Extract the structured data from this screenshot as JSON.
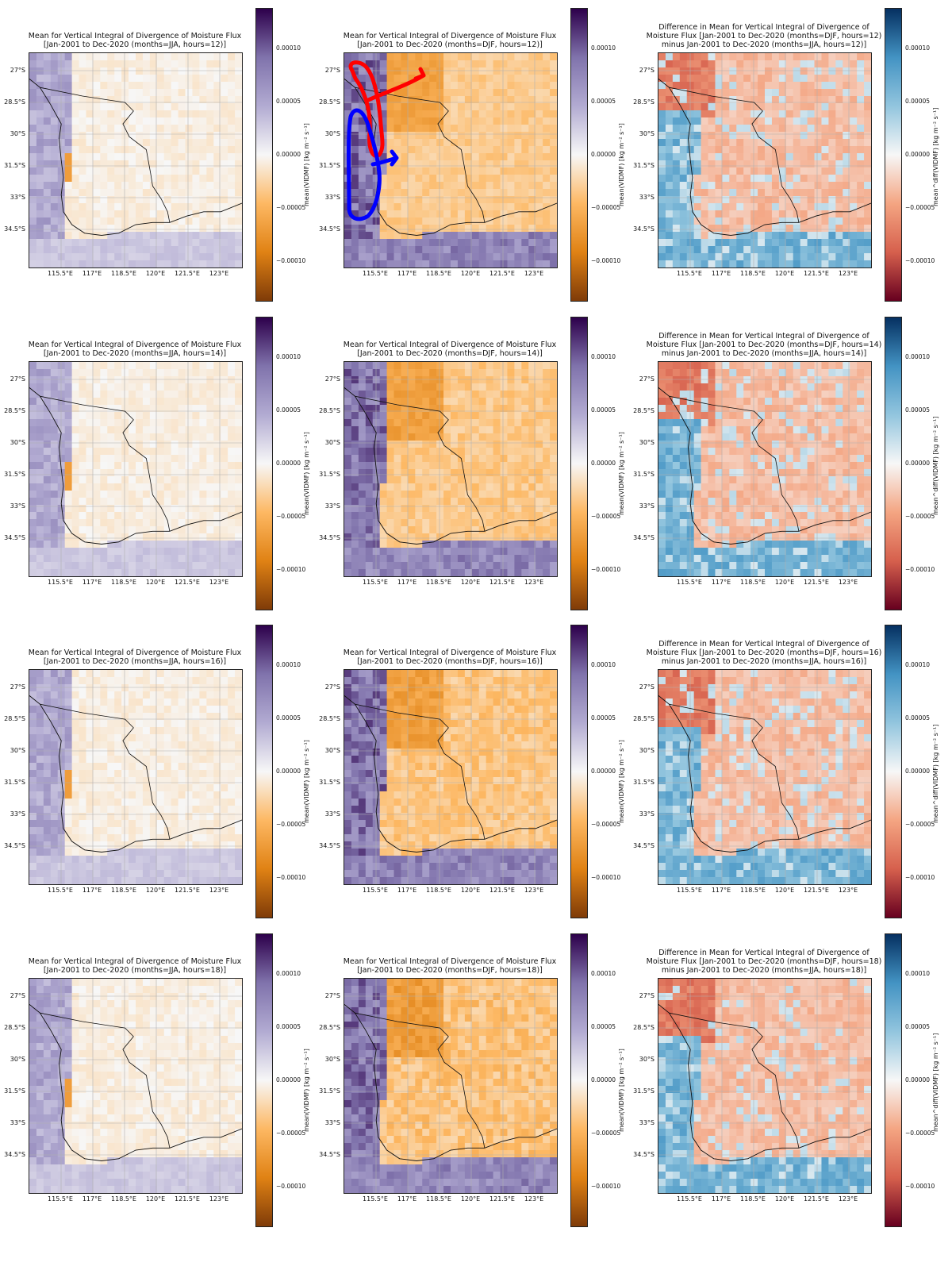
{
  "figure": {
    "lat_ticks": [
      "27°S",
      "28.5°S",
      "30°S",
      "31.5°S",
      "33°S",
      "34.5°S"
    ],
    "lon_ticks": [
      "115.5°E",
      "117°E",
      "118.5°E",
      "120°E",
      "121.5°E",
      "123°E"
    ],
    "cbar_ticks": [
      "0.00010",
      "0.00005",
      "0.00000",
      "−0.00005",
      "−0.00010"
    ],
    "cbar_label_mean": "mean(VIDMF) [kg m⁻² s⁻¹]",
    "cbar_label_diff": "mean^diff(VIDMF) [kg m⁻² s⁻¹]",
    "colors": {
      "mean_colormap": [
        "#7f3b08",
        "#e08214",
        "#fdb863",
        "#f7f7f7",
        "#b2abd2",
        "#8073ac",
        "#2d004b"
      ],
      "diff_colormap": [
        "#67001f",
        "#d6604d",
        "#f4a582",
        "#f7f7f7",
        "#92c5de",
        "#4393c3",
        "#053061"
      ],
      "annotation_red": "#ff0000",
      "annotation_blue": "#0000ff"
    },
    "annotation": {
      "panel": "DJF hours=12",
      "shapes": [
        "red loop with arrow",
        "blue loop with arrow"
      ]
    },
    "rows": [
      {
        "hour": "12",
        "panels": [
          {
            "type": "mean",
            "title": "Mean for Vertical Integral of Divergence of Moisture Flux\n[Jan-2001 to Dec-2020 (months=JJA, hours=12)]"
          },
          {
            "type": "mean",
            "title": "Mean for Vertical Integral of Divergence of Moisture Flux\n[Jan-2001 to Dec-2020 (months=DJF, hours=12)]"
          },
          {
            "type": "diff",
            "title": "Difference in Mean for Vertical Integral of Divergence of\nMoisture Flux [Jan-2001 to Dec-2020 (months=DJF, hours=12)\nminus Jan-2001 to Dec-2020 (months=JJA, hours=12)]"
          }
        ]
      },
      {
        "hour": "14",
        "panels": [
          {
            "type": "mean",
            "title": "Mean for Vertical Integral of Divergence of Moisture Flux\n[Jan-2001 to Dec-2020 (months=JJA, hours=14)]"
          },
          {
            "type": "mean",
            "title": "Mean for Vertical Integral of Divergence of Moisture Flux\n[Jan-2001 to Dec-2020 (months=DJF, hours=14)]"
          },
          {
            "type": "diff",
            "title": "Difference in Mean for Vertical Integral of Divergence of\nMoisture Flux [Jan-2001 to Dec-2020 (months=DJF, hours=14)\nminus Jan-2001 to Dec-2020 (months=JJA, hours=14)]"
          }
        ]
      },
      {
        "hour": "16",
        "panels": [
          {
            "type": "mean",
            "title": "Mean for Vertical Integral of Divergence of Moisture Flux\n[Jan-2001 to Dec-2020 (months=JJA, hours=16)]"
          },
          {
            "type": "mean",
            "title": "Mean for Vertical Integral of Divergence of Moisture Flux\n[Jan-2001 to Dec-2020 (months=DJF, hours=16)]"
          },
          {
            "type": "diff",
            "title": "Difference in Mean for Vertical Integral of Divergence of\nMoisture Flux [Jan-2001 to Dec-2020 (months=DJF, hours=16)\nminus Jan-2001 to Dec-2020 (months=JJA, hours=16)]"
          }
        ]
      },
      {
        "hour": "18",
        "panels": [
          {
            "type": "mean",
            "title": "Mean for Vertical Integral of Divergence of Moisture Flux\n[Jan-2001 to Dec-2020 (months=JJA, hours=18)]"
          },
          {
            "type": "mean",
            "title": "Mean for Vertical Integral of Divergence of Moisture Flux\n[Jan-2001 to Dec-2020 (months=DJF, hours=18)]"
          },
          {
            "type": "diff",
            "title": "Difference in Mean for Vertical Integral of Divergence of\nMoisture Flux [Jan-2001 to Dec-2020 (months=DJF, hours=18)\nminus Jan-2001 to Dec-2020 (months=JJA, hours=18)]"
          }
        ]
      }
    ]
  }
}
